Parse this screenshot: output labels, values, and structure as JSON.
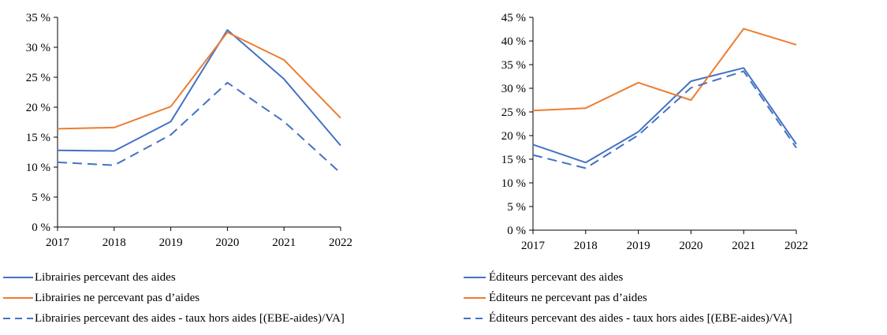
{
  "chart_data": [
    {
      "type": "line",
      "x": [
        "2017",
        "2018",
        "2019",
        "2020",
        "2021",
        "2022"
      ],
      "ylim": [
        0,
        35
      ],
      "yticks": [
        "0 %",
        "5 %",
        "10 %",
        "15 %",
        "20 %",
        "25 %",
        "30 %",
        "35 %"
      ],
      "ytick_values": [
        0,
        5,
        10,
        15,
        20,
        25,
        30,
        35
      ],
      "grid": false,
      "legend_position": "bottom",
      "series": [
        {
          "name": "Librairies percevant des aides",
          "color": "#4472C4",
          "dash": "solid",
          "values": [
            12.8,
            12.7,
            17.6,
            32.9,
            24.7,
            13.6
          ]
        },
        {
          "name": "Librairies ne percevant pas d’aides",
          "color": "#ED7D31",
          "dash": "solid",
          "values": [
            16.4,
            16.6,
            20.1,
            32.5,
            27.9,
            18.2
          ]
        },
        {
          "name": "Librairies percevant des aides - taux hors aides [(EBE-aides)/VA]",
          "color": "#4472C4",
          "dash": "dashed",
          "values": [
            10.8,
            10.3,
            15.4,
            24.1,
            17.6,
            9.0
          ]
        }
      ]
    },
    {
      "type": "line",
      "x": [
        "2017",
        "2018",
        "2019",
        "2020",
        "2021",
        "2022"
      ],
      "ylim": [
        0,
        45
      ],
      "yticks": [
        "0 %",
        "5 %",
        "10 %",
        "15 %",
        "20 %",
        "25 %",
        "30 %",
        "35 %",
        "40 %",
        "45 %"
      ],
      "ytick_values": [
        0,
        5,
        10,
        15,
        20,
        25,
        30,
        35,
        40,
        45
      ],
      "grid": false,
      "legend_position": "bottom",
      "series": [
        {
          "name": "Éditeurs percevant des aides",
          "color": "#4472C4",
          "dash": "solid",
          "values": [
            18.1,
            14.3,
            20.8,
            31.5,
            34.3,
            18.2
          ]
        },
        {
          "name": "Éditeurs ne percevant pas d’aides",
          "color": "#ED7D31",
          "dash": "solid",
          "values": [
            25.3,
            25.8,
            31.2,
            27.5,
            42.6,
            39.2
          ]
        },
        {
          "name": "Éditeurs percevant des aides - taux hors aides [(EBE-aides)/VA]",
          "color": "#4472C4",
          "dash": "dashed",
          "values": [
            15.9,
            13.1,
            20.1,
            30.1,
            33.6,
            17.4
          ]
        }
      ]
    }
  ]
}
